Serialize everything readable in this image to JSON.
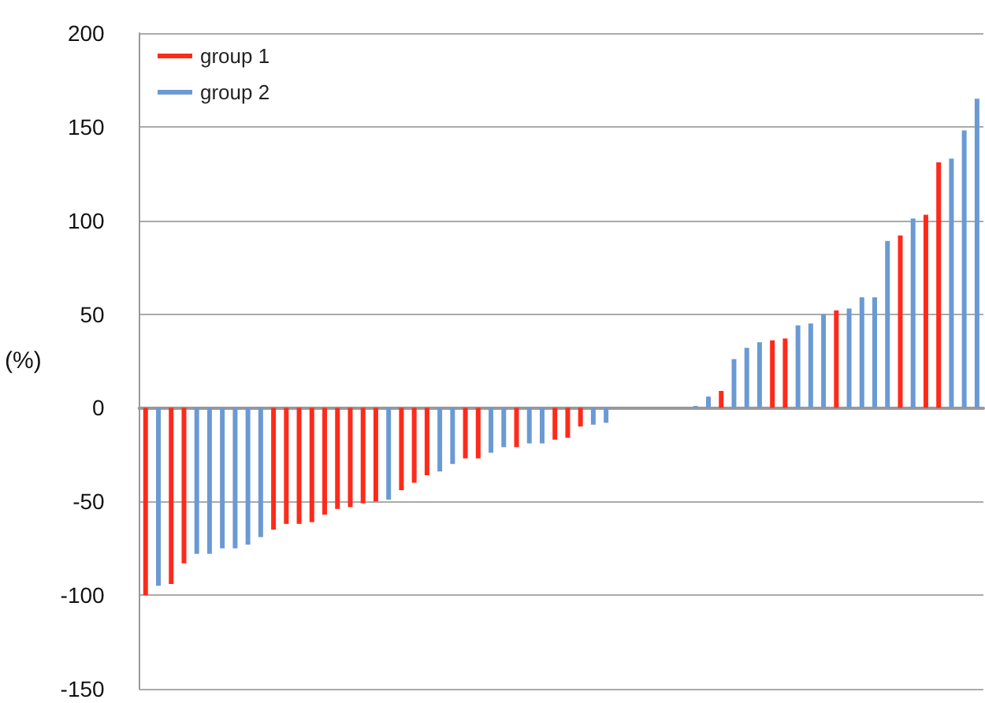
{
  "chart_data": {
    "type": "bar",
    "ylabel": "(%)",
    "categories": [
      null,
      null,
      null,
      null,
      null,
      null,
      null,
      null,
      null,
      null,
      null,
      null,
      null,
      null,
      null,
      null,
      null,
      null,
      null,
      null,
      null,
      null,
      null,
      null,
      null,
      null,
      null,
      null,
      null,
      null,
      null,
      null,
      null,
      null,
      null,
      null,
      null,
      null,
      null,
      null,
      null,
      null,
      null,
      null,
      null,
      null,
      null,
      null,
      null,
      null,
      null,
      null,
      null,
      null,
      null,
      null,
      null,
      null,
      null,
      null,
      null,
      null,
      null,
      null,
      null,
      null
    ],
    "series": [
      {
        "name": "group 1",
        "color": "#ff2a1a",
        "values": [
          -100,
          null,
          -94,
          -83,
          null,
          null,
          null,
          null,
          null,
          null,
          -65,
          -62,
          -62,
          -61,
          -57,
          -54,
          -53,
          -51,
          -50,
          null,
          -44,
          -40,
          -36,
          null,
          null,
          -27,
          -27,
          null,
          null,
          -21,
          null,
          null,
          -17,
          -16,
          -10,
          null,
          null,
          null,
          null,
          null,
          null,
          null,
          null,
          null,
          null,
          9,
          null,
          null,
          null,
          36,
          37,
          null,
          null,
          null,
          52,
          null,
          null,
          null,
          null,
          92,
          null,
          103,
          131,
          null,
          null,
          null
        ]
      },
      {
        "name": "group 2",
        "color": "#6a9ad4",
        "values": [
          null,
          -95,
          null,
          null,
          -78,
          -78,
          -75,
          -75,
          -73,
          -69,
          null,
          null,
          null,
          null,
          null,
          null,
          null,
          null,
          null,
          -49,
          null,
          null,
          null,
          -34,
          -30,
          null,
          null,
          -24,
          -21,
          null,
          -19,
          -19,
          null,
          null,
          null,
          -9,
          -8,
          null,
          null,
          null,
          null,
          null,
          null,
          1,
          6,
          null,
          26,
          32,
          35,
          null,
          null,
          44,
          45,
          50,
          null,
          53,
          59,
          59,
          89,
          null,
          101,
          null,
          null,
          133,
          148,
          165
        ]
      }
    ],
    "ylim": [
      -150,
      200
    ],
    "yticks": [
      -150,
      -100,
      -50,
      0,
      50,
      100,
      150,
      200
    ],
    "grid": "y",
    "legend": "top left"
  }
}
